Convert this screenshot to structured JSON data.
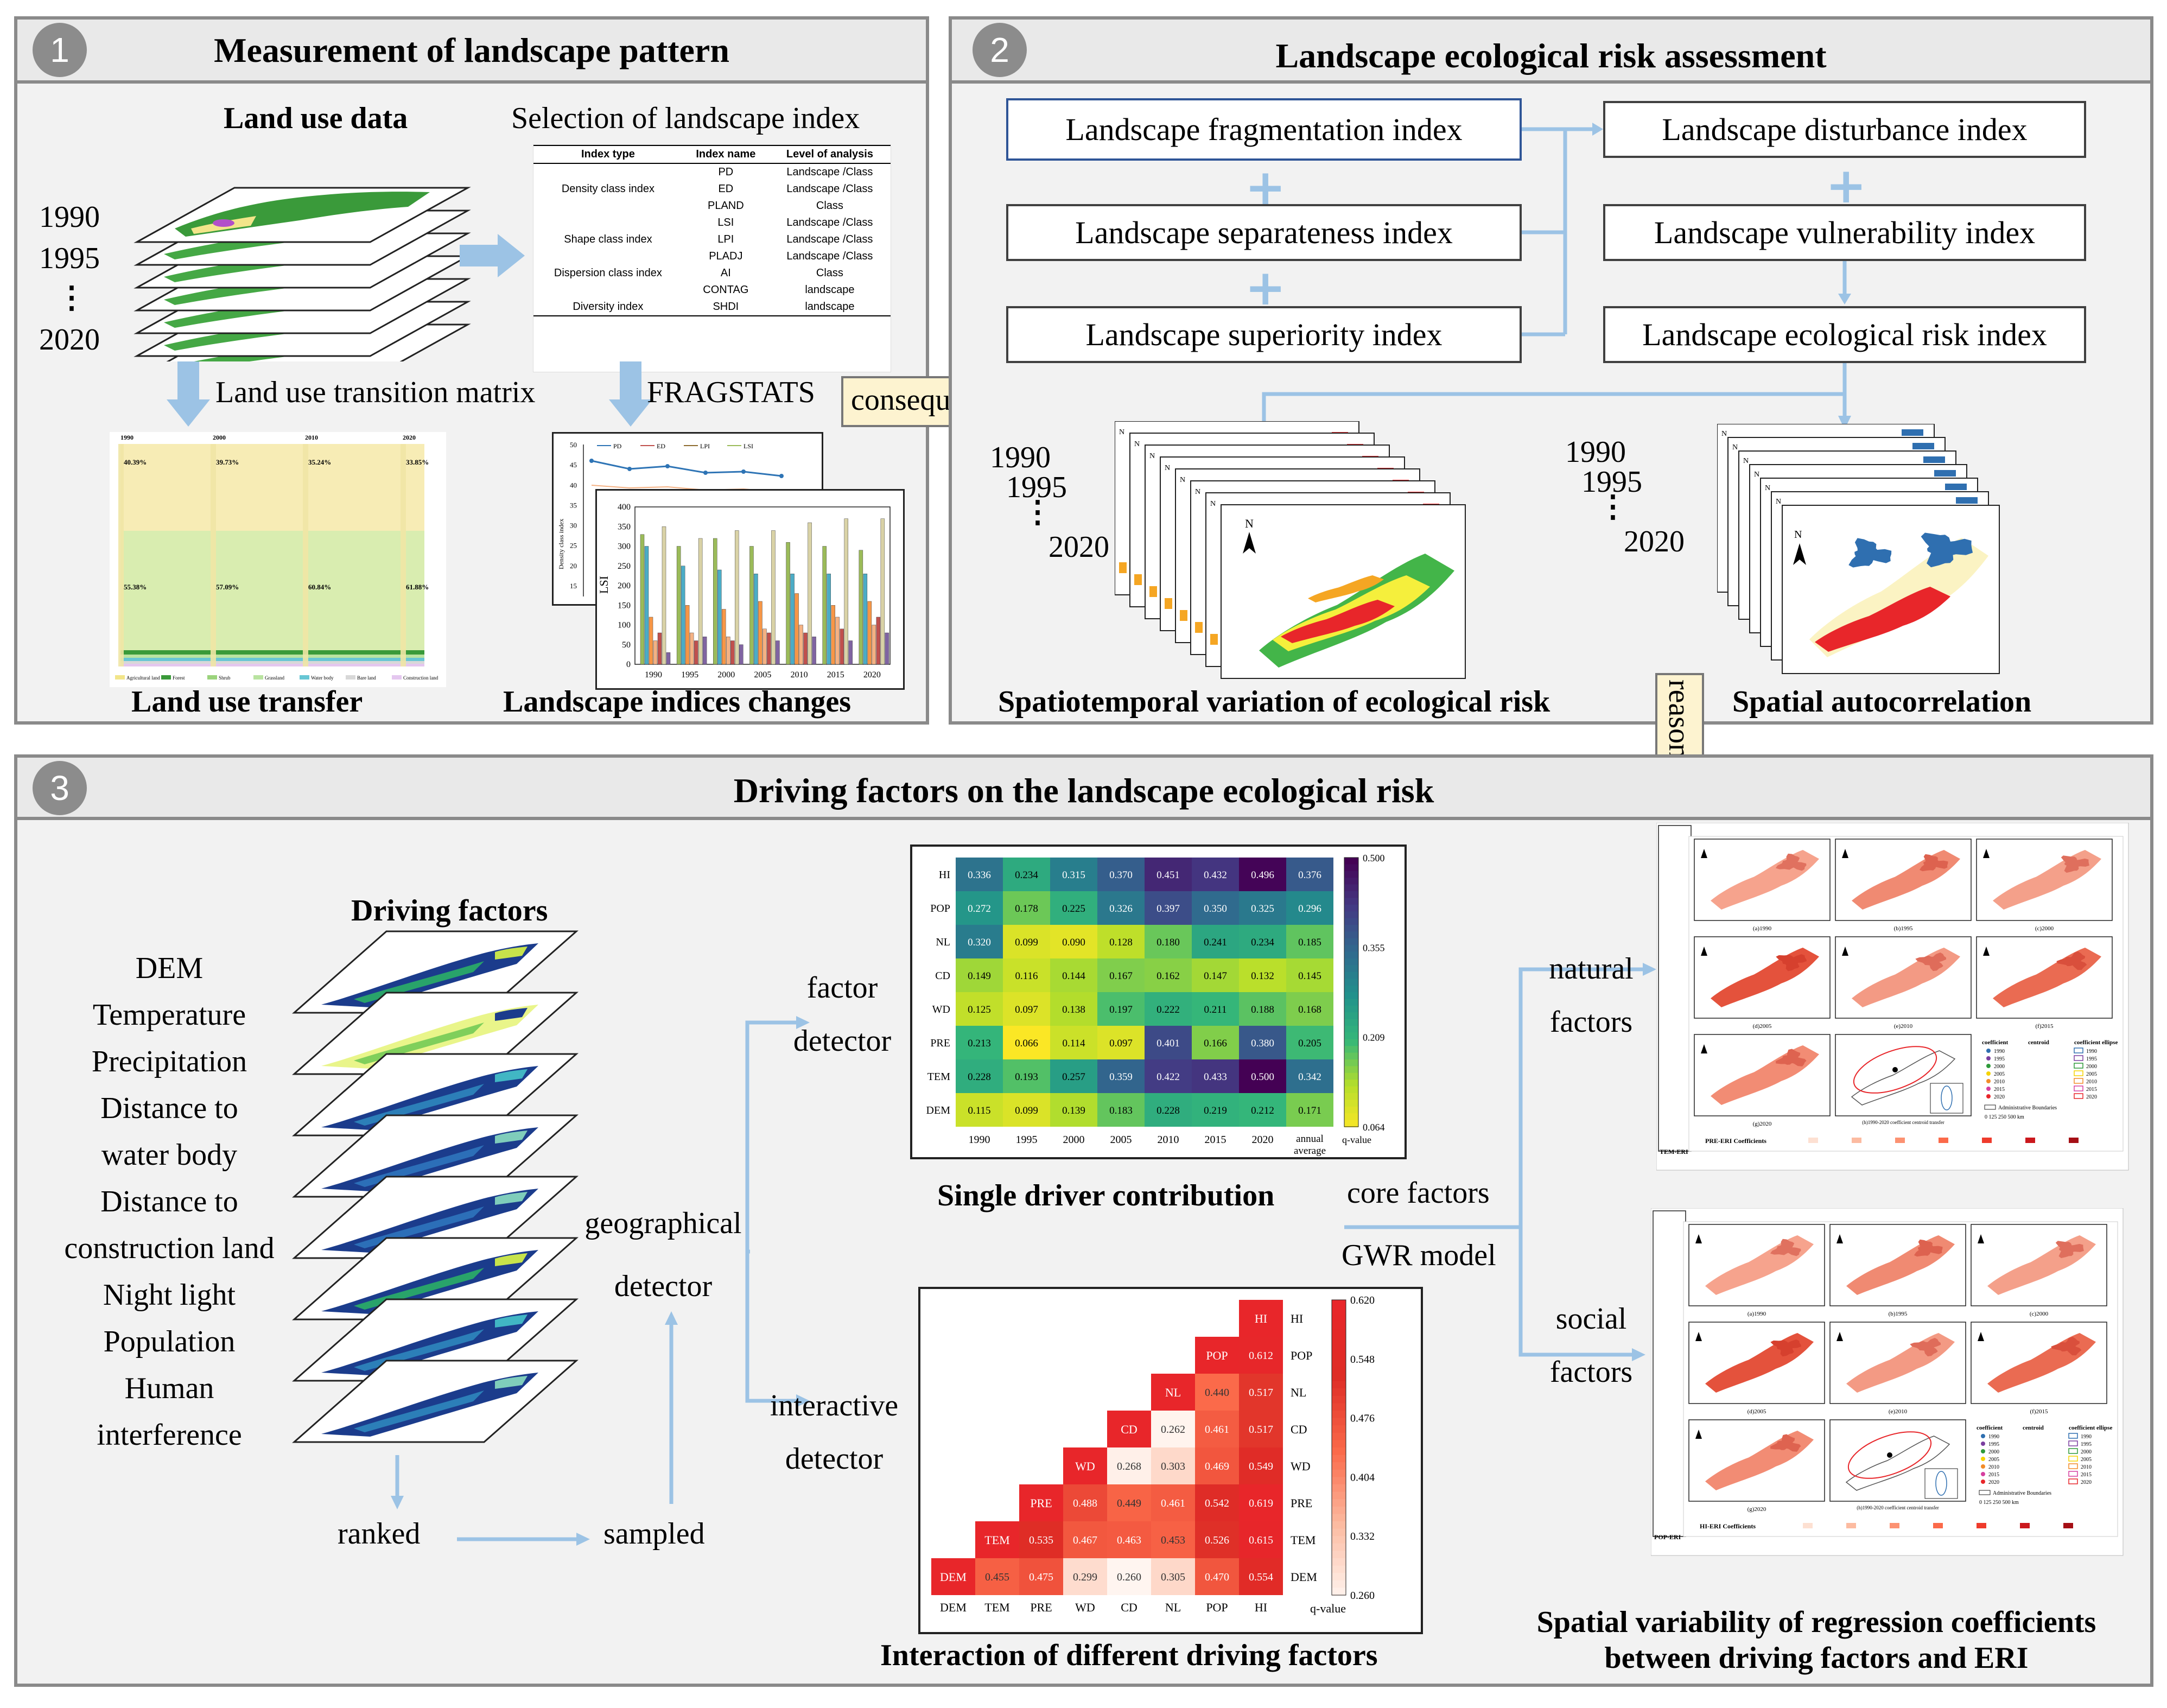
{
  "panel1": {
    "number": "1",
    "title": "Measurement of landscape pattern",
    "land_use_data": "Land use data",
    "years": [
      "1990",
      "1995",
      "⋮",
      "2020"
    ],
    "selection_title": "Selection of landscape index",
    "index_table": {
      "headers": [
        "Index type",
        "Index name",
        "Level of analysis"
      ],
      "rows": [
        [
          "",
          "PD",
          "Landscape /Class"
        ],
        [
          "Density class index",
          "ED",
          "Landscape /Class"
        ],
        [
          "",
          "PLAND",
          "Class"
        ],
        [
          "",
          "LSI",
          "Landscape /Class"
        ],
        [
          "Shape class index",
          "LPI",
          "Landscape /Class"
        ],
        [
          "",
          "PLADJ",
          "Landscape /Class"
        ],
        [
          "Dispersion class index",
          "AI",
          "Class"
        ],
        [
          "",
          "CONTAG",
          "landscape"
        ],
        [
          "Diversity index",
          "SHDI",
          "landscape"
        ]
      ]
    },
    "transition_label": "Land use transition matrix",
    "fragstats_label": "FRAGSTATS",
    "transfer_caption": "Land use transfer",
    "indices_caption": "Landscape indices changes",
    "sankey": {
      "years": [
        "1990",
        "2000",
        "2010",
        "2020"
      ],
      "top_values": [
        "40.39%",
        "39.73%",
        "35.24%",
        "33.85%"
      ],
      "mid_values": [
        "55.38%",
        "57.09%",
        "60.84%",
        "61.88%"
      ],
      "legend": [
        "Agricultural land",
        "Forest",
        "Shrub",
        "Grassland",
        "Water body",
        "Bare land",
        "Construction land"
      ]
    },
    "indices_chart": {
      "line_legend": [
        "PD",
        "ED",
        "LPI",
        "LSI"
      ],
      "ylabel_back": "Density class index",
      "ylabel_front": "LSI",
      "x": [
        "1990",
        "1995",
        "2000",
        "2005",
        "2010",
        "2015",
        "2020"
      ],
      "yticks": [
        "0",
        "50",
        "100",
        "150",
        "200",
        "250",
        "300",
        "350",
        "400"
      ],
      "yticks_back": [
        "15",
        "20",
        "25",
        "30",
        "35",
        "40",
        "45",
        "50"
      ]
    },
    "consequence_label": "consequence"
  },
  "panel2": {
    "number": "2",
    "title": "Landscape ecological risk assessment",
    "left_indices": [
      "Landscape fragmentation index",
      "Landscape separateness index",
      "Landscape superiority index"
    ],
    "right_indices": [
      "Landscape disturbance index",
      "Landscape vulnerability index",
      "Landscape ecological risk index"
    ],
    "years_left": [
      "1990",
      "1995",
      "⋮",
      "2020"
    ],
    "years_right": [
      "1990",
      "1995",
      "⋮",
      "2020"
    ],
    "caption_left": "Spatiotemporal variation of ecological risk",
    "caption_right": "Spatial autocorrelation",
    "reason_label": "reason",
    "north": "N"
  },
  "panel3": {
    "number": "3",
    "title": "Driving factors on the landscape ecological risk",
    "driving_factors_title": "Driving factors",
    "factor_list": [
      "DEM",
      "Temperature",
      "Precipitation",
      "Distance to",
      "water body",
      "Distance to",
      "construction land",
      "Night light",
      "Population",
      "Human",
      "interference"
    ],
    "ranked": "ranked",
    "sampled": "sampled",
    "geo_detector": [
      "geographical",
      "detector"
    ],
    "factor_detector": [
      "factor",
      "detector"
    ],
    "interactive_detector": [
      "interactive",
      "detector"
    ],
    "single_caption": "Single driver contribution",
    "interaction_caption": "Interaction of different driving factors",
    "core_factors": "core factors",
    "gwr_model": "GWR model",
    "natural_factors": [
      "natural",
      "factors"
    ],
    "social_factors": [
      "social",
      "factors"
    ],
    "spatial_caption": [
      "Spatial variability of regression coefficients",
      "between driving factors and ERI"
    ],
    "pre_label": "PRE-ERI Coefficients",
    "tem_label": "TEM-ERI",
    "hi_label": "HI-ERI  Coefficients",
    "pop_label": "POP-ERI",
    "map_sublabels": [
      "(a)1990",
      "(b)1995",
      "(c)2000",
      "(d)2005",
      "(e)2010",
      "(f)2015",
      "(g)2020",
      "(h)1990-2020 coefficient centroid transfer"
    ],
    "map_legend": [
      "coefficient",
      "centroid",
      "coefficient ellipse"
    ],
    "map_years": [
      "1990",
      "1995",
      "2000",
      "2005",
      "2010",
      "2015",
      "2020"
    ],
    "admin_boundaries": "Administrative Boundaries",
    "scale_label": "0  125  250   500 km"
  },
  "chart_data": [
    {
      "type": "heatmap",
      "title": "Single driver contribution",
      "rows": [
        "HI",
        "POP",
        "NL",
        "CD",
        "WD",
        "PRE",
        "TEM",
        "DEM"
      ],
      "columns": [
        "1990",
        "1995",
        "2000",
        "2005",
        "2010",
        "2015",
        "2020",
        "annual average"
      ],
      "values": [
        [
          0.336,
          0.234,
          0.315,
          0.37,
          0.451,
          0.432,
          0.496,
          0.376
        ],
        [
          0.272,
          0.178,
          0.225,
          0.326,
          0.397,
          0.35,
          0.325,
          0.296
        ],
        [
          0.32,
          0.099,
          0.09,
          0.128,
          0.18,
          0.241,
          0.234,
          0.185
        ],
        [
          0.149,
          0.116,
          0.144,
          0.167,
          0.162,
          0.147,
          0.132,
          0.145
        ],
        [
          0.125,
          0.097,
          0.138,
          0.197,
          0.222,
          0.211,
          0.188,
          0.168
        ],
        [
          0.213,
          0.066,
          0.114,
          0.097,
          0.401,
          0.166,
          0.38,
          0.205
        ],
        [
          0.228,
          0.193,
          0.257,
          0.359,
          0.422,
          0.433,
          0.5,
          0.342
        ],
        [
          0.115,
          0.099,
          0.139,
          0.183,
          0.228,
          0.219,
          0.212,
          0.171
        ]
      ],
      "value_strings": [
        [
          "0.336",
          "0.234",
          "0.315",
          "0.370",
          "0.451",
          "0.432",
          "0.496",
          "0.376"
        ],
        [
          "0.272",
          "0.178",
          "0.225",
          "0.326",
          "0.397",
          "0.350",
          "0.325",
          "0.296"
        ],
        [
          "0.320",
          "0.099",
          "0.090",
          "0.128",
          "0.180",
          "0.241",
          "0.234",
          "0.185"
        ],
        [
          "0.149",
          "0.116",
          "0.144",
          "0.167",
          "0.162",
          "0.147",
          "0.132",
          "0.145"
        ],
        [
          "0.125",
          "0.097",
          "0.138",
          "0.197",
          "0.222",
          "0.211",
          "0.188",
          "0.168"
        ],
        [
          "0.213",
          "0.066",
          "0.114",
          "0.097",
          "0.401",
          "0.166",
          "0.380",
          "0.205"
        ],
        [
          "0.228",
          "0.193",
          "0.257",
          "0.359",
          "0.422",
          "0.433",
          "0.500",
          "0.342"
        ],
        [
          "0.115",
          "0.099",
          "0.139",
          "0.183",
          "0.228",
          "0.219",
          "0.212",
          "0.171"
        ]
      ],
      "colorbar": {
        "label": "q-value",
        "min": 0.064,
        "max": 0.5,
        "ticks": [
          "0.500",
          "0.355",
          "0.209",
          "0.064"
        ]
      }
    },
    {
      "type": "heatmap",
      "title": "Interaction of different driving factors",
      "labels": [
        "DEM",
        "TEM",
        "PRE",
        "WD",
        "CD",
        "NL",
        "POP",
        "HI"
      ],
      "row_order_top_to_bottom": [
        "HI",
        "POP",
        "NL",
        "CD",
        "WD",
        "PRE",
        "TEM",
        "DEM"
      ],
      "values": [
        [],
        [
          0.612
        ],
        [
          0.44,
          0.517
        ],
        [
          0.262,
          0.461,
          0.517
        ],
        [
          0.268,
          0.303,
          0.469,
          0.549
        ],
        [
          0.488,
          0.449,
          0.461,
          0.542,
          0.619
        ],
        [
          0.535,
          0.467,
          0.463,
          0.453,
          0.526,
          0.615
        ],
        [
          0.455,
          0.475,
          0.299,
          0.26,
          0.305,
          0.47,
          0.554
        ]
      ],
      "value_strings": [
        [],
        [
          "0.612"
        ],
        [
          "0.440",
          "0.517"
        ],
        [
          "0.262",
          "0.461",
          "0.517"
        ],
        [
          "0.268",
          "0.303",
          "0.469",
          "0.549"
        ],
        [
          "0.488",
          "0.449",
          "0.461",
          "0.542",
          "0.619"
        ],
        [
          "0.535",
          "0.467",
          "0.463",
          "0.453",
          "0.526",
          "0.615"
        ],
        [
          "0.455",
          "0.475",
          "0.299",
          "0.260",
          "0.305",
          "0.470",
          "0.554"
        ]
      ],
      "colorbar": {
        "label": "q-value",
        "min": 0.26,
        "max": 0.62,
        "ticks": [
          "0.620",
          "0.548",
          "0.476",
          "0.404",
          "0.332",
          "0.260"
        ]
      }
    }
  ],
  "colors": {
    "panel_border": "#8a8a8a",
    "panel_bg": "#f2f2f2",
    "arrow_blue": "#9cc3e5",
    "consequence_fill": "#fdf3d0",
    "risk_red": "#e8262a",
    "risk_yellow": "#f5ef3c",
    "risk_green": "#43b549",
    "moran_blue": "#2f6fb0"
  }
}
